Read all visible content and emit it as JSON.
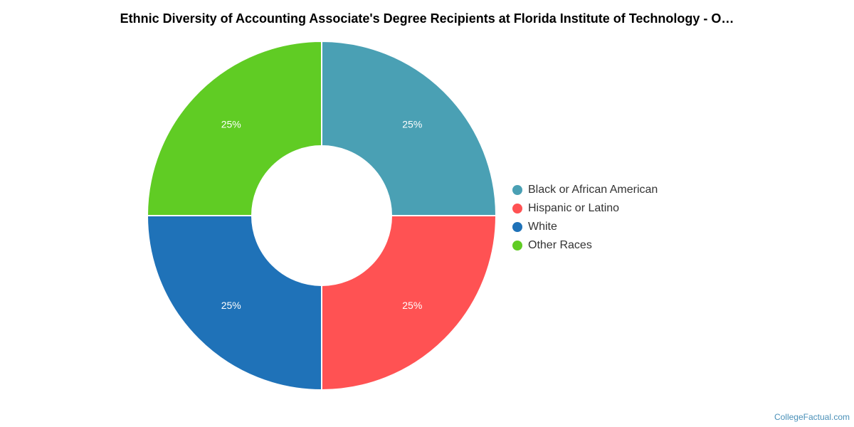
{
  "chart_data": {
    "type": "pie",
    "title": "Ethnic Diversity of Accounting Associate's Degree Recipients at Florida Institute of Technology - O…",
    "series": [
      {
        "name": "Black or African American",
        "value": 25,
        "label": "25%",
        "color": "#4aa0b4"
      },
      {
        "name": "Hispanic or Latino",
        "value": 25,
        "label": "25%",
        "color": "#ff5253"
      },
      {
        "name": "White",
        "value": 25,
        "label": "25%",
        "color": "#1f72b8"
      },
      {
        "name": "Other Races",
        "value": 25,
        "label": "25%",
        "color": "#60cc24"
      }
    ],
    "legend_position": "right"
  },
  "credit": "CollegeFactual.com"
}
